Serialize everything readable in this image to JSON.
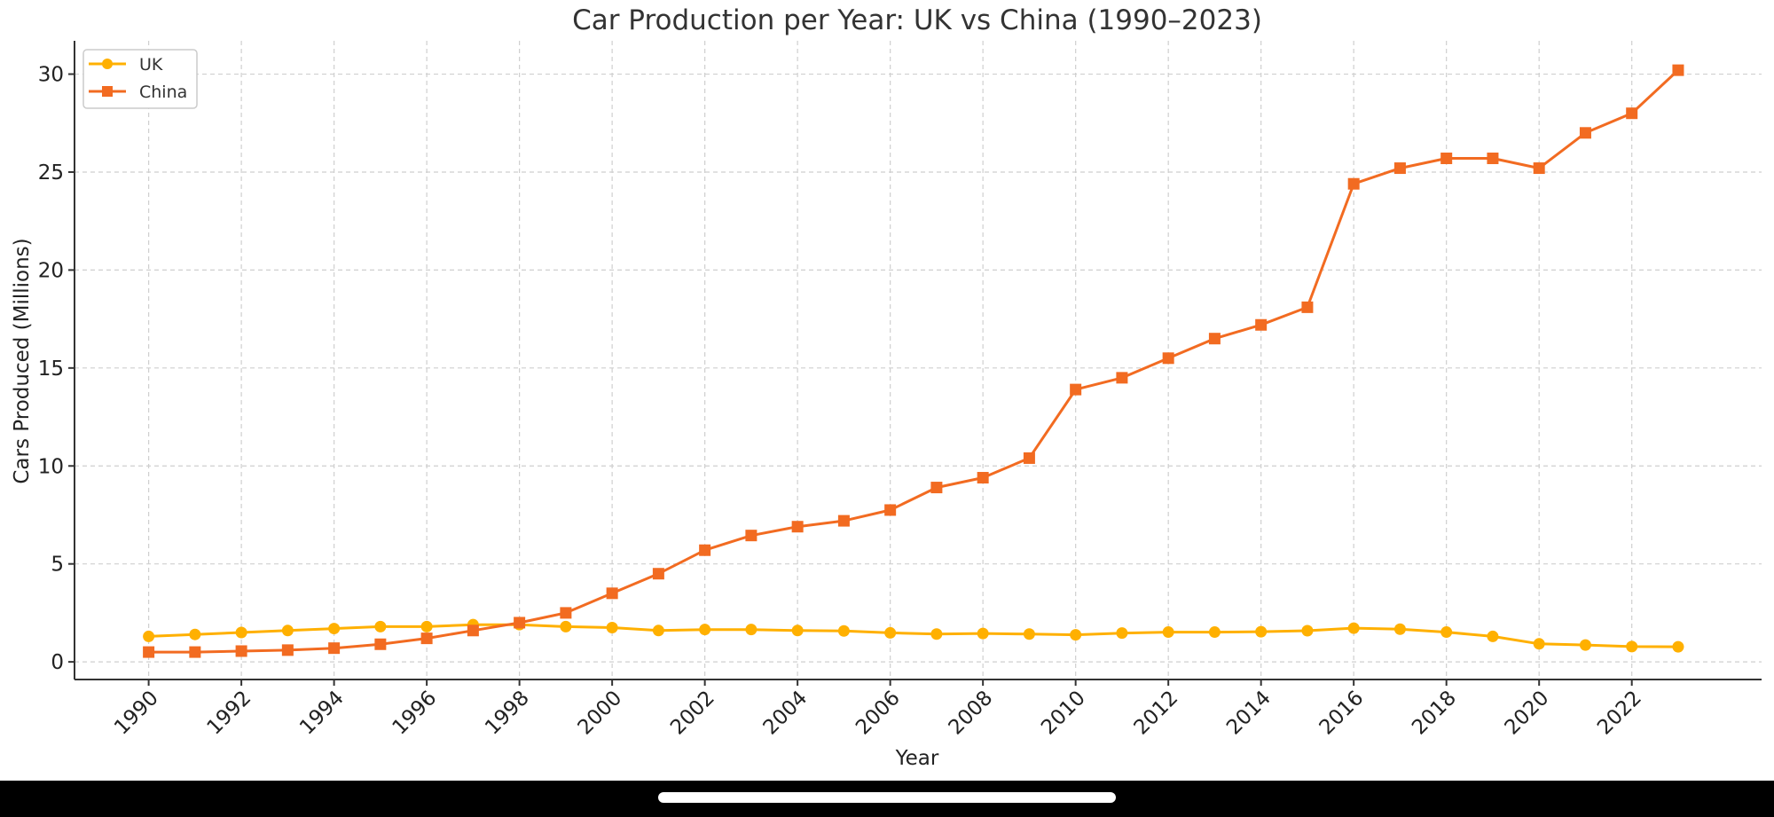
{
  "chart_data": {
    "type": "line",
    "title": "Car Production per Year: UK vs China (1990–2023)",
    "xlabel": "Year",
    "ylabel": "Cars Produced (Millions)",
    "xlim": [
      1988.4,
      2024.8
    ],
    "ylim": [
      -0.9,
      31.7
    ],
    "grid": true,
    "legend_position": "top-left",
    "x_ticks": [
      "1990",
      "1992",
      "1994",
      "1996",
      "1998",
      "2000",
      "2002",
      "2004",
      "2006",
      "2008",
      "2010",
      "2012",
      "2014",
      "2016",
      "2018",
      "2020",
      "2022"
    ],
    "y_ticks": [
      "0",
      "5",
      "10",
      "15",
      "20",
      "25",
      "30"
    ],
    "x": [
      1990,
      1991,
      1992,
      1993,
      1994,
      1995,
      1996,
      1997,
      1998,
      1999,
      2000,
      2001,
      2002,
      2003,
      2004,
      2005,
      2006,
      2007,
      2008,
      2009,
      2010,
      2011,
      2012,
      2013,
      2014,
      2015,
      2016,
      2017,
      2018,
      2019,
      2020,
      2021,
      2022,
      2023
    ],
    "series": [
      {
        "name": "UK",
        "color": "#FFB000",
        "marker": "circle",
        "values": [
          1.3,
          1.4,
          1.5,
          1.6,
          1.7,
          1.8,
          1.8,
          1.9,
          1.9,
          1.8,
          1.75,
          1.6,
          1.65,
          1.65,
          1.6,
          1.58,
          1.48,
          1.42,
          1.45,
          1.42,
          1.38,
          1.47,
          1.52,
          1.52,
          1.54,
          1.59,
          1.72,
          1.67,
          1.52,
          1.3,
          0.92,
          0.86,
          0.78,
          0.77
        ]
      },
      {
        "name": "China",
        "color": "#F26B21",
        "marker": "square",
        "values": [
          0.5,
          0.5,
          0.55,
          0.6,
          0.7,
          0.9,
          1.2,
          1.6,
          2.0,
          2.5,
          3.5,
          4.5,
          5.7,
          6.45,
          6.9,
          7.2,
          7.75,
          8.9,
          9.4,
          10.4,
          13.9,
          14.5,
          15.5,
          16.5,
          17.2,
          18.1,
          24.4,
          25.2,
          25.7,
          25.7,
          25.2,
          27.0,
          28.0,
          30.2
        ]
      }
    ]
  }
}
